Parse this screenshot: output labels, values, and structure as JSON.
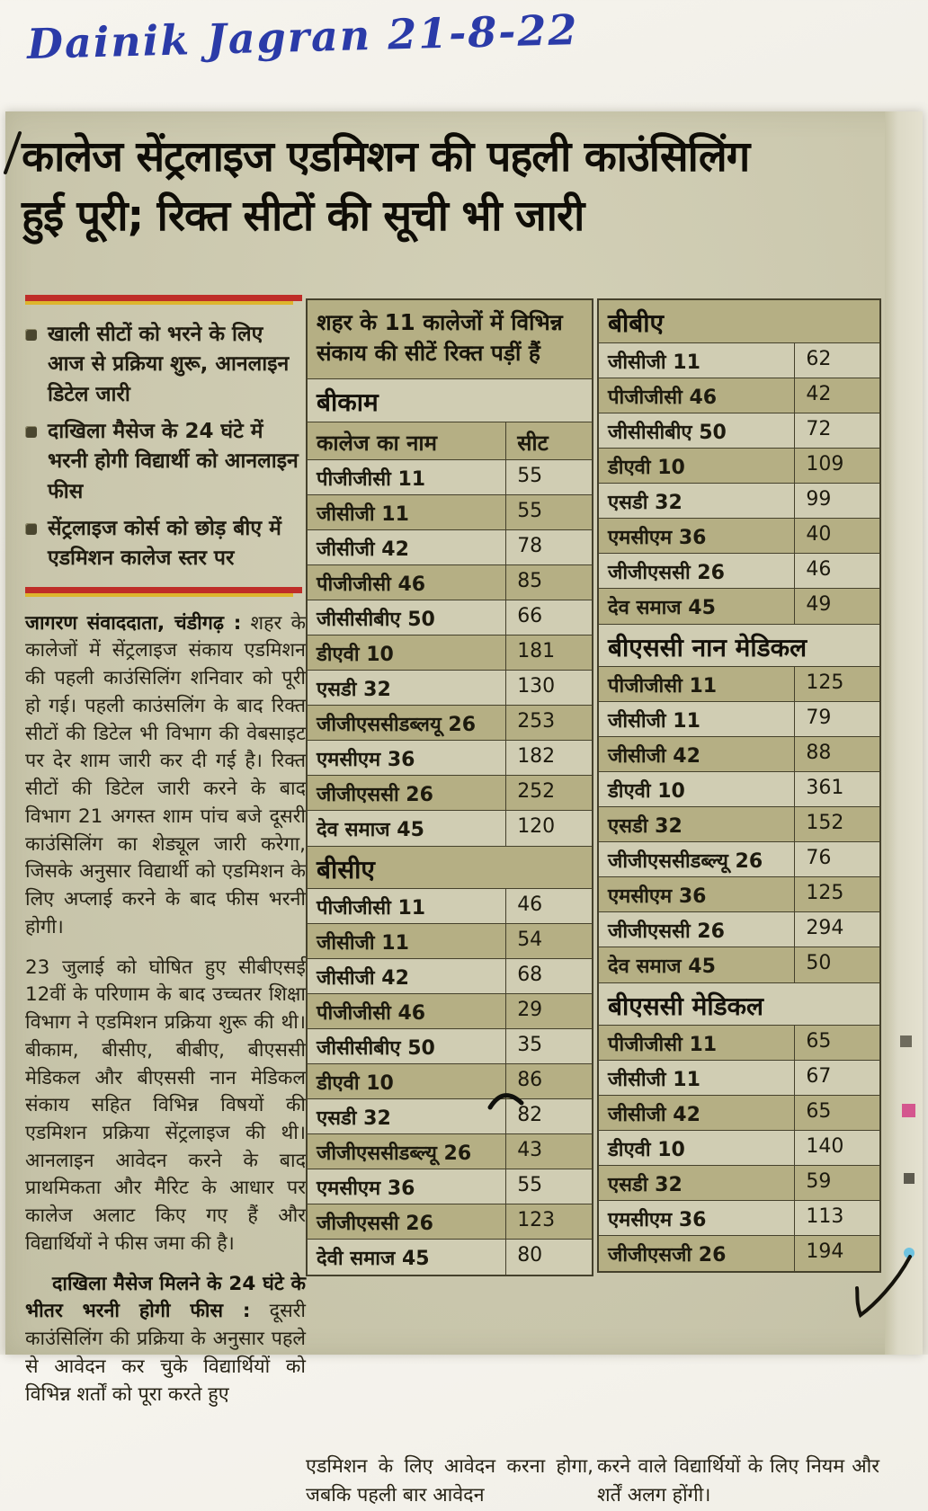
{
  "note": "Dainik Jagran 21-8-22",
  "headline": {
    "line1": "कालेज सेंट्रलाइज एडमिशन की पहली काउंसिलिंग",
    "line2": "हुई पूरी; रिक्त सीटों की सूची भी जारी"
  },
  "bullets": [
    "खाली सीटों को भरने के लिए आज से प्रक्रिया शुरू, आनलाइन डिटेल जारी",
    "दाखिला मैसेज के 24 घंटे में भरनी होगी विद्यार्थी को आनलाइन फीस",
    "सेंट्रलाइज कोर्स को छोड़ बीए में एडमिशन कालेज स्तर पर"
  ],
  "article": {
    "byline": "जागरण संवाददाता, चंडीगढ़ :",
    "para1": "शहर के कालेजों में सेंट्रलाइज संकाय एडमिशन की पहली काउंसिलिंग शनिवार को पूरी हो गई। पहली काउंसलिंग के बाद रिक्त सीटों की डिटेल भी विभाग की वेबसाइट पर देर शाम जारी कर दी गई है। रिक्त सीटों की डिटेल जारी करने के बाद विभाग 21 अगस्त शाम पांच बजे दूसरी काउंसिलिंग का शेड्यूल जारी करेगा, जिसके अनुसार विद्यार्थी को एडमिशन के लिए अप्लाई करने के बाद फीस भरनी होगी।",
    "para2": "23 जुलाई को घोषित हुए सीबीएसई 12वीं के परिणाम के बाद उच्चतर शिक्षा विभाग ने एडमिशन प्रक्रिया शुरू की थी। बीकाम, बीसीए, बीबीए, बीएससी मेडिकल और बीएससी नान मेडिकल संकाय सहित विभिन्न विषयों की एडमिशन प्रक्रिया सेंट्रलाइज की थी। आनलाइन आवेदन करने के बाद प्राथमिकता और मैरिट के आधार पर कालेज अलाट किए गए हैं और विद्यार्थियों ने फीस जमा की है।",
    "para3_lead": "दाखिला मैसेज मिलने के 24 घंटे के भीतर भरनी होगी फीस :",
    "para3": "दूसरी काउंसिलिंग की प्रक्रिया के अनुसार पहले से आवेदन कर चुके विद्यार्थियों को विभिन्न शर्तों को पूरा करते हुए",
    "bottom_left": "एडमिशन के लिए आवेदन करना होगा, जबकि पहली बार आवेदन",
    "bottom_right": "करने वाले विद्यार्थियों के लिए नियम और शर्तें अलग होंगी।"
  },
  "table_intro": "शहर के 11 कालेजों में विभिन्न संकाय की सीटें रिक्त पड़ीं हैं",
  "columns": {
    "name": "कालेज का नाम",
    "seat": "सीट"
  },
  "sections": [
    {
      "title": "बीकाम",
      "rows": [
        {
          "college": "पीजीजीसी 11",
          "seats": "55"
        },
        {
          "college": "जीसीजी 11",
          "seats": "55"
        },
        {
          "college": "जीसीजी 42",
          "seats": "78"
        },
        {
          "college": "पीजीजीसी 46",
          "seats": "85"
        },
        {
          "college": "जीसीसीबीए 50",
          "seats": "66"
        },
        {
          "college": "डीएवी 10",
          "seats": "181"
        },
        {
          "college": "एसडी 32",
          "seats": "130"
        },
        {
          "college": "जीजीएससीडब्लयू 26",
          "seats": "253"
        },
        {
          "college": "एमसीएम 36",
          "seats": "182"
        },
        {
          "college": "जीजीएससी 26",
          "seats": "252"
        },
        {
          "college": "देव समाज 45",
          "seats": "120"
        }
      ]
    },
    {
      "title": "बीसीए",
      "rows": [
        {
          "college": "पीजीजीसी 11",
          "seats": "46"
        },
        {
          "college": "जीसीजी 11",
          "seats": "54"
        },
        {
          "college": "जीसीजी 42",
          "seats": "68"
        },
        {
          "college": "पीजीजीसी 46",
          "seats": "29"
        },
        {
          "college": "जीसीसीबीए 50",
          "seats": "35"
        },
        {
          "college": "डीएवी 10",
          "seats": "86"
        },
        {
          "college": "एसडी 32",
          "seats": "82"
        },
        {
          "college": "जीजीएससीडब्ल्यू 26",
          "seats": "43"
        },
        {
          "college": "एमसीएम 36",
          "seats": "55"
        },
        {
          "college": "जीजीएससी 26",
          "seats": "123"
        },
        {
          "college": "देवी समाज 45",
          "seats": "80"
        }
      ]
    },
    {
      "title": "बीबीए",
      "rows": [
        {
          "college": "जीसीजी 11",
          "seats": "62"
        },
        {
          "college": "पीजीजीसी 46",
          "seats": "42"
        },
        {
          "college": "जीसीसीबीए 50",
          "seats": "72"
        },
        {
          "college": "डीएवी 10",
          "seats": "109"
        },
        {
          "college": "एसडी 32",
          "seats": "99"
        },
        {
          "college": "एमसीएम 36",
          "seats": "40"
        },
        {
          "college": "जीजीएससी 26",
          "seats": "46"
        },
        {
          "college": "देव समाज 45",
          "seats": "49"
        }
      ]
    },
    {
      "title": "बीएससी नान मेडिकल",
      "rows": [
        {
          "college": "पीजीजीसी 11",
          "seats": "125"
        },
        {
          "college": "जीसीजी 11",
          "seats": "79"
        },
        {
          "college": "जीसीजी 42",
          "seats": "88"
        },
        {
          "college": "डीएवी 10",
          "seats": "361"
        },
        {
          "college": "एसडी 32",
          "seats": "152"
        },
        {
          "college": "जीजीएससीडब्ल्यू 26",
          "seats": "76"
        },
        {
          "college": "एमसीएम 36",
          "seats": "125"
        },
        {
          "college": "जीजीएससी 26",
          "seats": "294"
        },
        {
          "college": "देव समाज 45",
          "seats": "50"
        }
      ]
    },
    {
      "title": "बीएससी मेडिकल",
      "rows": [
        {
          "college": "पीजीजीसी 11",
          "seats": "65"
        },
        {
          "college": "जीसीजी 11",
          "seats": "67"
        },
        {
          "college": "जीसीजी 42",
          "seats": "65"
        },
        {
          "college": "डीएवी 10",
          "seats": "140"
        },
        {
          "college": "एसडी 32",
          "seats": "59"
        },
        {
          "college": "एमसीएम 36",
          "seats": "113"
        },
        {
          "college": "जीजीएसजी 26",
          "seats": "194"
        }
      ]
    }
  ],
  "colors": {
    "handwriting_blue": "#2b3ba8",
    "rule_red": "#bf2d28",
    "rule_yellow": "#ddb52d",
    "row_shaded": "#b5af84",
    "row_light": "#d0cdb3",
    "paper": "#cbc8ae"
  }
}
